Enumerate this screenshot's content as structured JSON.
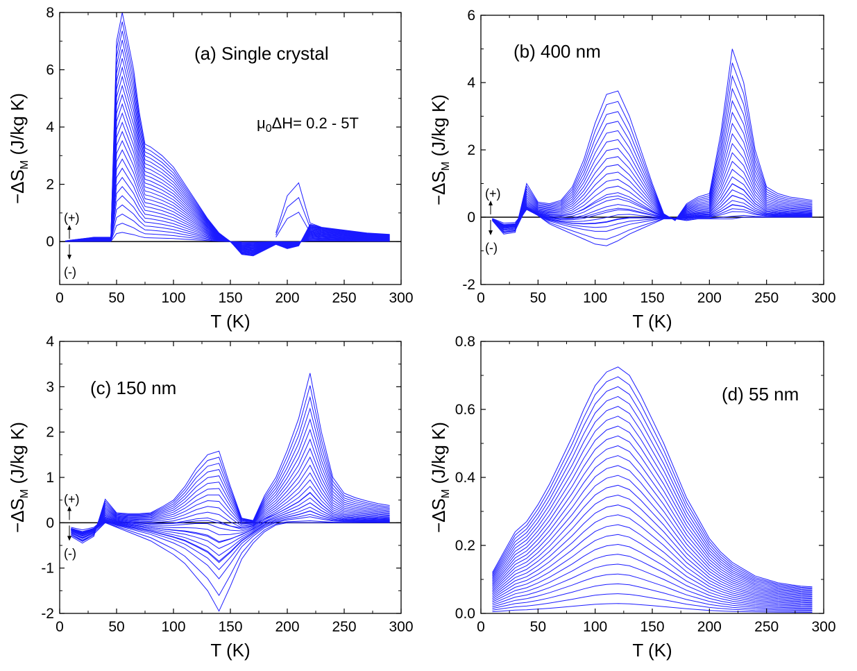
{
  "figure": {
    "curve_color": "#1a1aff",
    "axis_color": "#000000",
    "zero_line_color": "#000000",
    "sign_up": "(+)",
    "sign_down": "(-)"
  },
  "chart_data": [
    {
      "id": "a",
      "type": "line",
      "panel_label": "(a) Single crystal",
      "annotation": {
        "prefix": "μ",
        "subscript": "0",
        "text": "ΔH= 0.2 - 5T"
      },
      "xlabel": "T (K)",
      "ylabel_main": "−ΔS",
      "ylabel_sub": "M",
      "ylabel_unit": " (J/kg K)",
      "xlim": [
        0,
        300
      ],
      "ylim": [
        -1.5,
        8
      ],
      "xticks": [
        0,
        50,
        100,
        150,
        200,
        250,
        300
      ],
      "yticks": [
        0,
        2,
        4,
        6,
        8
      ],
      "grid": false,
      "show_sign_arrows": true,
      "sign_arrow_y": 0.4,
      "field_range_T": [
        0.2,
        5.0
      ],
      "n_curves": 25,
      "series_description": "25 curves, field change 0.2 T to 5 T in 0.2 T steps; outermost (5 T) curve listed",
      "x": [
        5,
        10,
        20,
        30,
        40,
        45,
        50,
        55,
        60,
        65,
        70,
        75,
        80,
        90,
        100,
        110,
        120,
        130,
        140,
        150,
        160,
        170,
        180,
        190,
        200,
        210,
        220,
        230,
        250,
        270,
        290
      ],
      "max_curve": [
        0.02,
        0.05,
        0.1,
        0.15,
        0.15,
        0.15,
        7.0,
        8.0,
        7.0,
        6.0,
        4.5,
        3.4,
        3.3,
        3.0,
        2.6,
        2.0,
        1.4,
        0.8,
        0.3,
        0.0,
        -0.45,
        -0.5,
        -0.3,
        -0.1,
        -0.25,
        -0.15,
        0.6,
        0.5,
        0.4,
        0.3,
        0.25
      ],
      "secondary_peak": {
        "x": [
          200,
          210,
          220
        ],
        "y": [
          1.6,
          2.05,
          0.65
        ]
      }
    },
    {
      "id": "b",
      "type": "line",
      "panel_label": "(b) 400 nm",
      "xlabel": "T (K)",
      "ylabel_main": "−ΔS",
      "ylabel_sub": "M",
      "ylabel_unit": " (J/kg K)",
      "xlim": [
        0,
        300
      ],
      "ylim": [
        -2,
        6
      ],
      "xticks": [
        0,
        50,
        100,
        150,
        200,
        250,
        300
      ],
      "yticks": [
        -2,
        0,
        2,
        4,
        6
      ],
      "grid": false,
      "show_sign_arrows": true,
      "sign_arrow_y": 0.4,
      "field_range_T": [
        0.2,
        5.0
      ],
      "n_curves": 25,
      "series_description": "25 curves, field change 0.2 T to 5 T; outermost positive envelope and lowest negative curve listed",
      "x": [
        10,
        20,
        30,
        40,
        50,
        60,
        70,
        80,
        90,
        100,
        110,
        120,
        130,
        140,
        150,
        160,
        170,
        180,
        190,
        200,
        210,
        220,
        230,
        240,
        250,
        260,
        270,
        280,
        290
      ],
      "max_curve": [
        -0.1,
        -0.5,
        -0.45,
        1.0,
        0.45,
        0.4,
        0.5,
        0.9,
        1.7,
        2.8,
        3.65,
        3.75,
        3.0,
        2.0,
        1.0,
        0.1,
        -0.1,
        0.4,
        0.6,
        0.7,
        2.5,
        5.0,
        4.0,
        2.0,
        0.9,
        0.7,
        0.6,
        0.55,
        0.5
      ],
      "min_curve": [
        -0.1,
        -0.45,
        -0.4,
        0.3,
        0.05,
        -0.2,
        -0.35,
        -0.5,
        -0.65,
        -0.8,
        -0.85,
        -0.7,
        -0.5,
        -0.35,
        -0.2,
        -0.05,
        -0.05,
        -0.1,
        -0.05,
        -0.05,
        -0.05,
        -0.05,
        0.0,
        0.0,
        0.0,
        0.0,
        0.0,
        0.0,
        0.0
      ]
    },
    {
      "id": "c",
      "type": "line",
      "panel_label": "(c) 150 nm",
      "xlabel": "T (K)",
      "ylabel_main": "−ΔS",
      "ylabel_sub": "M",
      "ylabel_unit": " (J/kg K)",
      "xlim": [
        0,
        300
      ],
      "ylim": [
        -2,
        4
      ],
      "xticks": [
        0,
        50,
        100,
        150,
        200,
        250,
        300
      ],
      "yticks": [
        -2,
        -1,
        0,
        1,
        2,
        3,
        4
      ],
      "grid": false,
      "show_sign_arrows": true,
      "sign_arrow_y": 0.35,
      "field_range_T": [
        0.2,
        5.0
      ],
      "n_curves": 25,
      "series_description": "25 curves, field change 0.2 T to 5 T; outermost positive envelope and lowest negative curve listed",
      "x": [
        10,
        20,
        30,
        40,
        50,
        60,
        70,
        80,
        90,
        100,
        110,
        120,
        130,
        140,
        150,
        160,
        170,
        180,
        190,
        200,
        210,
        220,
        230,
        240,
        250,
        260,
        270,
        280,
        290
      ],
      "max_curve": [
        -0.3,
        -0.45,
        -0.3,
        0.52,
        0.22,
        0.2,
        0.2,
        0.22,
        0.35,
        0.5,
        0.8,
        1.2,
        1.5,
        1.58,
        0.8,
        0.1,
        0.05,
        0.6,
        1.0,
        1.6,
        2.3,
        3.3,
        2.0,
        1.0,
        0.65,
        0.55,
        0.48,
        0.42,
        0.38
      ],
      "min_curve": [
        -0.25,
        -0.4,
        -0.25,
        0.0,
        -0.1,
        -0.2,
        -0.3,
        -0.4,
        -0.55,
        -0.7,
        -0.9,
        -1.2,
        -1.5,
        -1.95,
        -1.4,
        -0.8,
        -0.45,
        -0.2,
        -0.05,
        0.0,
        0.0,
        0.0,
        0.0,
        0.0,
        0.0,
        0.0,
        0.0,
        0.0,
        0.0
      ]
    },
    {
      "id": "d",
      "type": "line",
      "panel_label": "(d) 55 nm",
      "xlabel": "T (K)",
      "ylabel_main": "−ΔS",
      "ylabel_sub": "M",
      "ylabel_unit": " (J/kg K)",
      "xlim": [
        0,
        300
      ],
      "ylim": [
        0,
        0.8
      ],
      "xticks": [
        0,
        50,
        100,
        150,
        200,
        250,
        300
      ],
      "yticks": [
        0.0,
        0.2,
        0.4,
        0.6,
        0.8
      ],
      "ytick_decimals": 1,
      "grid": false,
      "show_sign_arrows": false,
      "field_range_T": [
        0.2,
        5.0
      ],
      "n_curves": 25,
      "series_description": "25 curves, field change 0.2 T to 5 T; outermost (5 T) curve listed",
      "x": [
        10,
        20,
        30,
        40,
        50,
        60,
        70,
        80,
        90,
        100,
        110,
        120,
        130,
        140,
        150,
        160,
        170,
        180,
        190,
        200,
        210,
        220,
        230,
        240,
        250,
        260,
        270,
        280,
        290
      ],
      "max_curve": [
        0.12,
        0.18,
        0.24,
        0.27,
        0.32,
        0.38,
        0.45,
        0.52,
        0.6,
        0.67,
        0.71,
        0.725,
        0.7,
        0.64,
        0.57,
        0.5,
        0.42,
        0.34,
        0.28,
        0.22,
        0.18,
        0.15,
        0.13,
        0.11,
        0.1,
        0.09,
        0.085,
        0.08,
        0.078
      ]
    }
  ]
}
